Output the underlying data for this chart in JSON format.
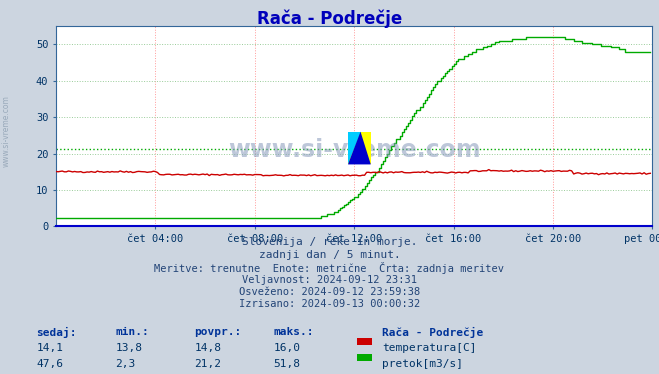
{
  "title": "Rača - Podrečje",
  "bg_color": "#ccd5e0",
  "plot_bg_color": "#ffffff",
  "grid_color_v": "#ff9999",
  "grid_color_h": "#99cc99",
  "x_labels": [
    "čet 04:00",
    "čet 08:00",
    "čet 12:00",
    "čet 16:00",
    "čet 20:00",
    "pet 00:00"
  ],
  "x_ticks": [
    48,
    96,
    144,
    192,
    240,
    288
  ],
  "total_points": 288,
  "y_min": 0,
  "y_max": 55,
  "y_ticks": [
    0,
    10,
    20,
    30,
    40,
    50
  ],
  "temp_color": "#cc0000",
  "flow_color": "#00aa00",
  "avg_flow_line": 21.2,
  "watermark_text": "www.si-vreme.com",
  "sidebar_text": "www.si-vreme.com",
  "footer_lines": [
    "Slovenija / reke in morje.",
    "zadnji dan / 5 minut.",
    "Meritve: trenutne  Enote: metrične  Črta: zadnja meritev",
    "Veljavnost: 2024-09-12 23:31",
    "Osveženo: 2024-09-12 23:59:38",
    "Izrisano: 2024-09-13 00:00:32"
  ],
  "table_headers": [
    "sedaj:",
    "min.:",
    "povpr.:",
    "maks.:"
  ],
  "table_row1": [
    "14,1",
    "13,8",
    "14,8",
    "16,0"
  ],
  "table_row2": [
    "47,6",
    "2,3",
    "21,2",
    "51,8"
  ],
  "legend_label1": "temperatura[C]",
  "legend_label2": "pretok[m3/s]",
  "legend_station": "Rača - Podrečje"
}
